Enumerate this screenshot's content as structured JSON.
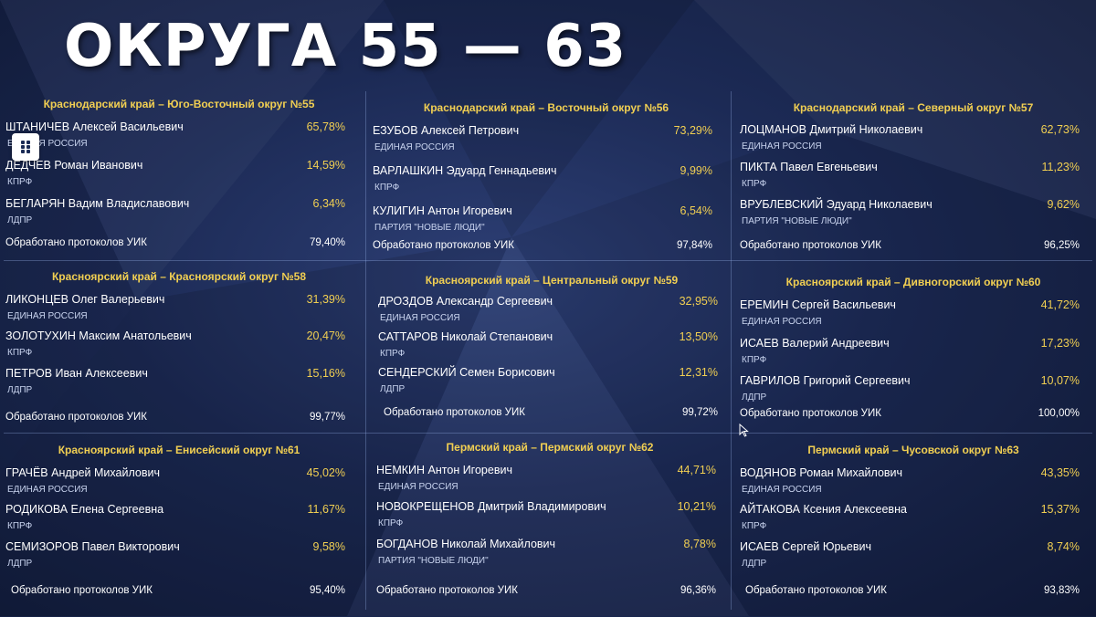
{
  "title": "ОКРУГА 55 — 63",
  "processed_label": "Обработано протоколов УИК",
  "colors": {
    "accent": "#f1cf52",
    "background": "#1c2a55"
  },
  "icons": {
    "grid_button": "grid-icon",
    "cursor": "mouse-pointer-icon"
  },
  "districts": [
    {
      "header": "Краснодарский край – Юго-Восточный округ №55",
      "candidates": [
        {
          "name": "ШТАНИЧЕВ Алексей Васильевич",
          "percent": "65,78%",
          "party": "ЕДИНАЯ РОССИЯ"
        },
        {
          "name": "ДЕДЧЕВ Роман Иванович",
          "percent": "14,59%",
          "party": "КПРФ"
        },
        {
          "name": "БЕГЛАРЯН Вадим Владиславович",
          "percent": "6,34%",
          "party": "ЛДПР"
        }
      ],
      "processed": "79,40%"
    },
    {
      "header": "Краснодарский край – Восточный округ №56",
      "candidates": [
        {
          "name": "ЕЗУБОВ Алексей Петрович",
          "percent": "73,29%",
          "party": "ЕДИНАЯ РОССИЯ"
        },
        {
          "name": "ВАРЛАШКИН Эдуард Геннадьевич",
          "percent": "9,99%",
          "party": "КПРФ"
        },
        {
          "name": "КУЛИГИН Антон Игоревич",
          "percent": "6,54%",
          "party": "ПАРТИЯ \"НОВЫЕ ЛЮДИ\""
        }
      ],
      "processed": "97,84%"
    },
    {
      "header": "Краснодарский край – Северный округ №57",
      "candidates": [
        {
          "name": "ЛОЦМАНОВ Дмитрий Николаевич",
          "percent": "62,73%",
          "party": "ЕДИНАЯ РОССИЯ"
        },
        {
          "name": "ПИКТА Павел Евгеньевич",
          "percent": "11,23%",
          "party": "КПРФ"
        },
        {
          "name": "ВРУБЛЕВСКИЙ Эдуард Николаевич",
          "percent": "9,62%",
          "party": "ПАРТИЯ \"НОВЫЕ ЛЮДИ\""
        }
      ],
      "processed": "96,25%"
    },
    {
      "header": "Красноярский край – Красноярский округ №58",
      "candidates": [
        {
          "name": "ЛИКОНЦЕВ Олег Валерьевич",
          "percent": "31,39%",
          "party": "ЕДИНАЯ РОССИЯ"
        },
        {
          "name": "ЗОЛОТУХИН Максим Анатольевич",
          "percent": "20,47%",
          "party": "КПРФ"
        },
        {
          "name": "ПЕТРОВ Иван Алексеевич",
          "percent": "15,16%",
          "party": "ЛДПР"
        }
      ],
      "processed": "99,77%"
    },
    {
      "header": "Красноярский край – Центральный округ №59",
      "candidates": [
        {
          "name": "ДРОЗДОВ Александр Сергеевич",
          "percent": "32,95%",
          "party": "ЕДИНАЯ РОССИЯ"
        },
        {
          "name": "САТТАРОВ Николай Степанович",
          "percent": "13,50%",
          "party": "КПРФ"
        },
        {
          "name": "СЕНДЕРСКИЙ Семен Борисович",
          "percent": "12,31%",
          "party": "ЛДПР"
        }
      ],
      "processed": "99,72%"
    },
    {
      "header": "Красноярский край – Дивногорский округ №60",
      "candidates": [
        {
          "name": "ЕРЕМИН Сергей Васильевич",
          "percent": "41,72%",
          "party": "ЕДИНАЯ РОССИЯ"
        },
        {
          "name": "ИСАЕВ Валерий Андреевич",
          "percent": "17,23%",
          "party": "КПРФ"
        },
        {
          "name": "ГАВРИЛОВ Григорий Сергеевич",
          "percent": "10,07%",
          "party": "ЛДПР"
        }
      ],
      "processed": "100,00%"
    },
    {
      "header": "Красноярский край – Енисейский округ №61",
      "candidates": [
        {
          "name": "ГРАЧЁВ Андрей Михайлович",
          "percent": "45,02%",
          "party": "ЕДИНАЯ РОССИЯ"
        },
        {
          "name": "РОДИКОВА Елена Сергеевна",
          "percent": "11,67%",
          "party": "КПРФ"
        },
        {
          "name": "СЕМИЗОРОВ Павел Викторович",
          "percent": "9,58%",
          "party": "ЛДПР"
        }
      ],
      "processed": "95,40%"
    },
    {
      "header": "Пермский край – Пермский округ №62",
      "candidates": [
        {
          "name": "НЕМКИН Антон Игоревич",
          "percent": "44,71%",
          "party": "ЕДИНАЯ РОССИЯ"
        },
        {
          "name": "НОВОКРЕЩЕНОВ Дмитрий Владимирович",
          "percent": "10,21%",
          "party": "КПРФ"
        },
        {
          "name": "БОГДАНОВ Николай Михайлович",
          "percent": "8,78%",
          "party": "ПАРТИЯ \"НОВЫЕ ЛЮДИ\""
        }
      ],
      "processed": "96,36%"
    },
    {
      "header": "Пермский край – Чусовской округ №63",
      "candidates": [
        {
          "name": "ВОДЯНОВ Роман Михайлович",
          "percent": "43,35%",
          "party": "ЕДИНАЯ РОССИЯ"
        },
        {
          "name": "АЙТАКОВА Ксения Алексеевна",
          "percent": "15,37%",
          "party": "КПРФ"
        },
        {
          "name": "ИСАЕВ Сергей Юрьевич",
          "percent": "8,74%",
          "party": "ЛДПР"
        }
      ],
      "processed": "93,83%"
    }
  ]
}
